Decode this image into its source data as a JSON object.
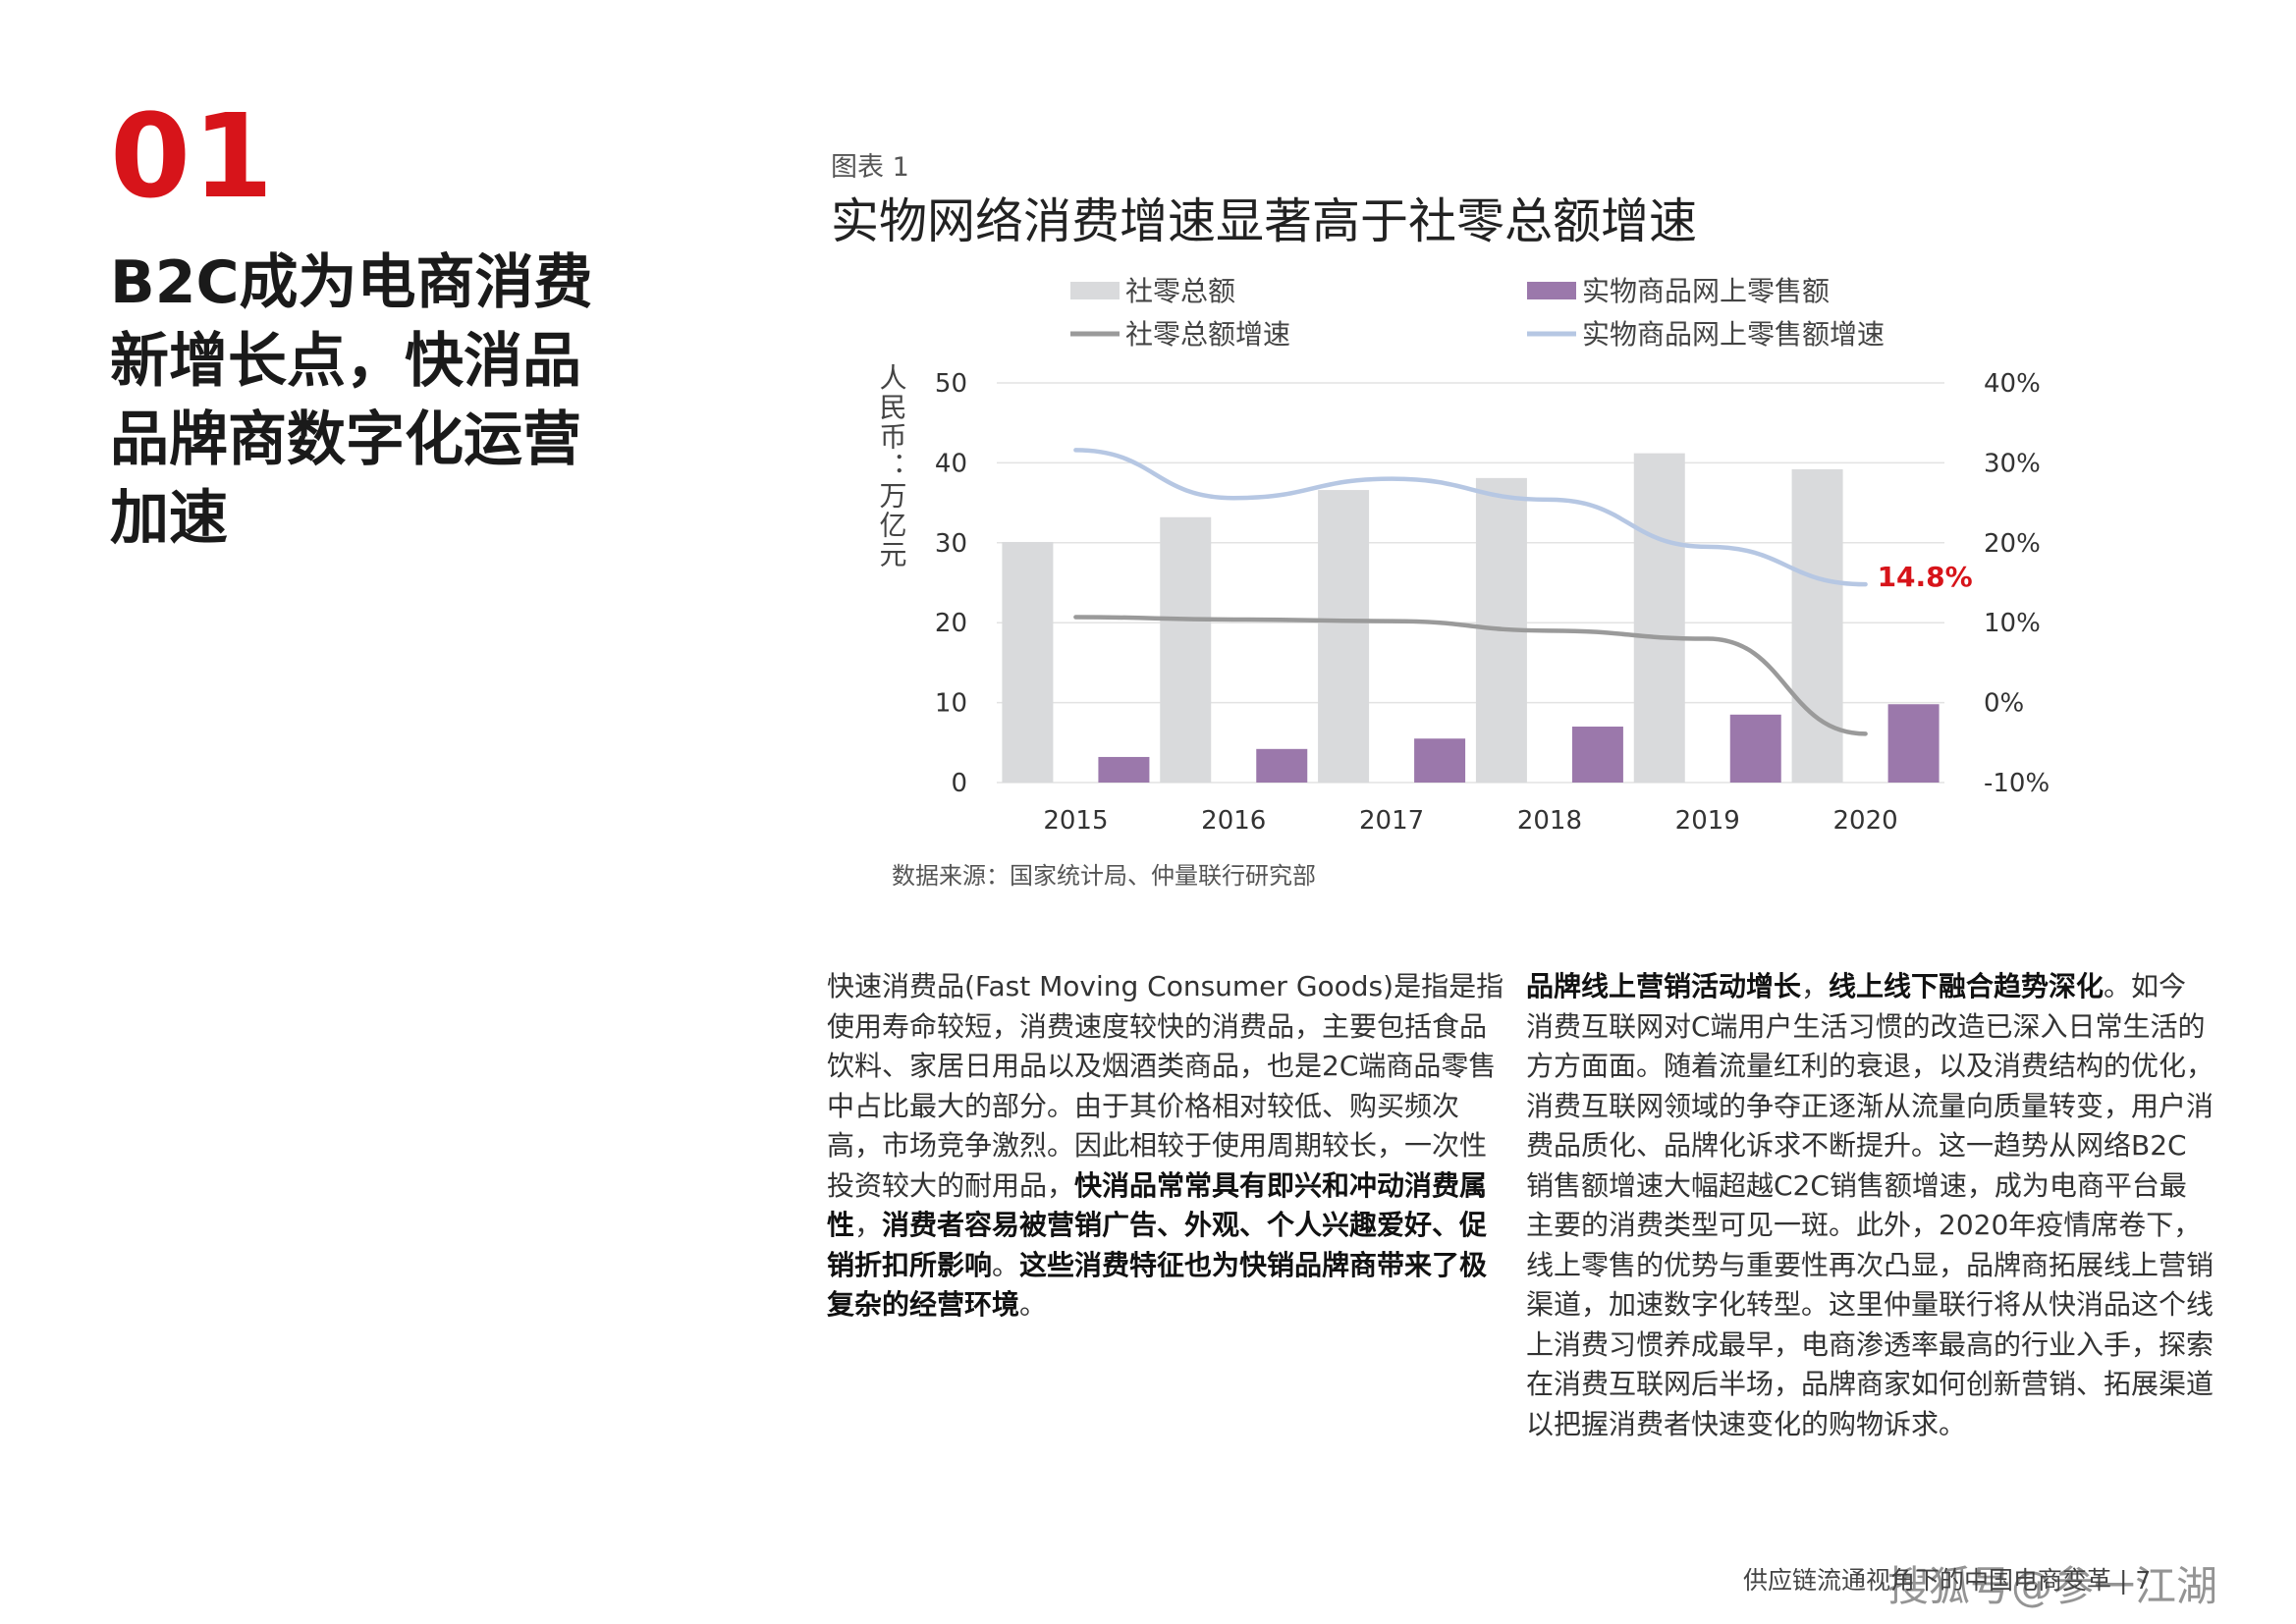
{
  "section": {
    "number": "01",
    "title": "B2C成为电商消费新增长点，快消品品牌商数字化运营加速"
  },
  "figure": {
    "label": "图表 1",
    "title": "实物网络消费增速显著高于社零总额增速",
    "source": "数据来源：国家统计局、仲量联行研究部"
  },
  "chart_data": {
    "type": "bar",
    "categories": [
      "2015",
      "2016",
      "2017",
      "2018",
      "2019",
      "2020"
    ],
    "series": [
      {
        "name": "社零总额",
        "type": "bar",
        "axis": "left",
        "color": "#d9dadc",
        "values": [
          30.1,
          33.2,
          36.6,
          38.1,
          41.2,
          39.2
        ]
      },
      {
        "name": "实物商品网上零售额",
        "type": "bar",
        "axis": "left",
        "color": "#9b78ab",
        "values": [
          3.2,
          4.2,
          5.5,
          7.0,
          8.5,
          9.8
        ]
      },
      {
        "name": "社零总额增速",
        "type": "line",
        "axis": "right",
        "color": "#9a9a9a",
        "values": [
          10.7,
          10.4,
          10.2,
          9.0,
          8.0,
          -3.9
        ]
      },
      {
        "name": "实物商品网上零售额增速",
        "type": "line",
        "axis": "right",
        "color": "#b6c7e3",
        "values": [
          31.6,
          25.6,
          28.0,
          25.4,
          19.5,
          14.8
        ]
      }
    ],
    "ylabel": "人民币：万亿元",
    "ylim": [
      0,
      50
    ],
    "yticks": [
      "0",
      "10",
      "20",
      "30",
      "40",
      "50"
    ],
    "y2lim": [
      -10,
      40
    ],
    "y2ticks": [
      "-10%",
      "0%",
      "10%",
      "20%",
      "30%",
      "40%"
    ],
    "grid": true,
    "legend_position": "top",
    "annotation": {
      "series": "实物商品网上零售额增速",
      "category": "2020",
      "text": "14.8%",
      "color": "#d7141a"
    }
  },
  "body": {
    "left": [
      {
        "text": "快速消费品(Fast Moving Consumer Goods)是指是指使用寿命较短，消费速度较快的消费品，主要包括食品饮料、家居日用品以及烟酒类商品，也是2C端商品零售中占比最大的部分。由于其价格相对较低、购买频次高，市场竞争激烈。因此相较于使用周期较长，一次性投资较大的耐用品，",
        "bold": false
      },
      {
        "text": "快消品常常具有即兴和冲动消费属性",
        "bold": true
      },
      {
        "text": "，",
        "bold": false
      },
      {
        "text": "消费者容易被营销广告、外观、个人兴趣爱好、促销折扣所影响",
        "bold": true
      },
      {
        "text": "。",
        "bold": false
      },
      {
        "text": "这些消费特征也为快销品牌商带来了极复杂的经营环境",
        "bold": true
      },
      {
        "text": "。",
        "bold": false
      }
    ],
    "right": [
      {
        "text": "品牌线上营销活动增长",
        "bold": true
      },
      {
        "text": "，",
        "bold": false
      },
      {
        "text": "线上线下融合趋势深化",
        "bold": true
      },
      {
        "text": "。如今消费互联网对C端用户生活习惯的改造已深入日常生活的方方面面。随着流量红利的衰退，以及消费结构的优化，消费互联网领域的争夺正逐渐从流量向质量转变，用户消费品质化、品牌化诉求不断提升。这一趋势从网络B2C销售额增速大幅超越C2C销售额增速，成为电商平台最主要的消费类型可见一斑。此外，2020年疫情席卷下，线上零售的优势与重要性再次凸显，品牌商拓展线上营销渠道，加速数字化转型。这里仲量联行将从快消品这个线上消费习惯养成最早，电商渗透率最高的行业入手，探索在消费互联网后半场，品牌商家如何创新营销、拓展渠道以把握消费者快速变化的购物诉求。",
        "bold": false
      }
    ]
  },
  "footer": {
    "text": "供应链流通视角下的中国电商变革 | 7",
    "watermark": "搜狐号@参一江湖"
  }
}
